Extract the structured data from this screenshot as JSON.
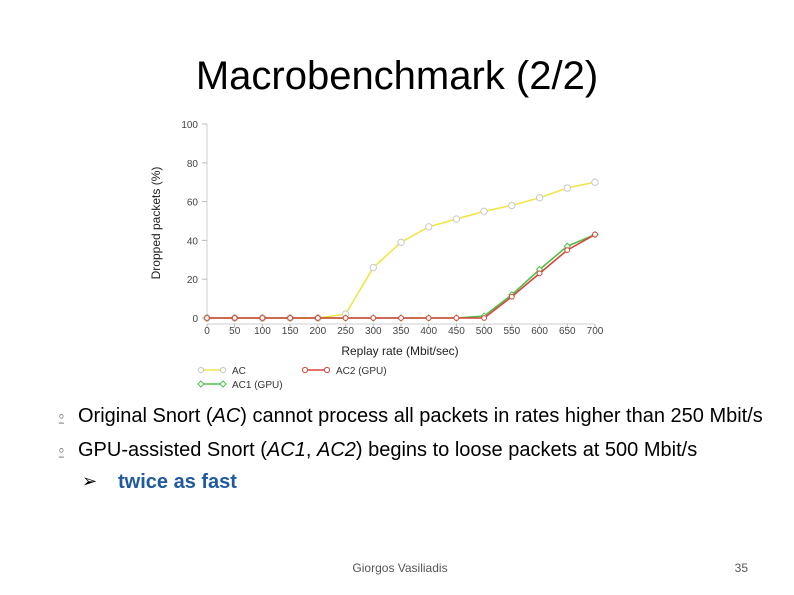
{
  "slide": {
    "title": "Macrobenchmark (2/2)",
    "bullets": [
      {
        "pre": "Original Snort (",
        "em1": "AC",
        "post": ") cannot process all packets in rates higher than 250 Mbit/s"
      },
      {
        "pre": "GPU-assisted Snort (",
        "em1": "AC1",
        "mid": ", ",
        "em2": "AC2",
        "post": ") begins to loose packets at 500 Mbit/s"
      }
    ],
    "sub_bullet": "twice as fast",
    "footer_author": "Giorgos Vasiliadis",
    "page_number": "35",
    "colors": {
      "accent": "#1f5aa0",
      "bullet_mark": "#7a7a7a"
    }
  },
  "chart_data": {
    "type": "line",
    "xlabel": "Replay rate (Mbit/sec)",
    "ylabel": "Dropped packets (%)",
    "x": [
      0,
      50,
      100,
      150,
      200,
      250,
      300,
      350,
      400,
      450,
      500,
      550,
      600,
      650,
      700
    ],
    "xticks": [
      "0",
      "50",
      "100",
      "150",
      "200",
      "250",
      "300",
      "350",
      "400",
      "450",
      "500",
      "550",
      "600",
      "650",
      "700"
    ],
    "yticks": [
      "0",
      "20",
      "40",
      "60",
      "80",
      "100"
    ],
    "ylim": [
      0,
      100
    ],
    "xlim": [
      0,
      700
    ],
    "grid": false,
    "legend_position": "bottom-left",
    "series": [
      {
        "name": "AC",
        "color": "#f0e64a",
        "values": [
          0,
          0,
          0,
          0,
          0,
          2,
          26,
          39,
          47,
          51,
          55,
          58,
          62,
          67,
          70
        ]
      },
      {
        "name": "AC1 (GPU)",
        "color": "#4ec24e",
        "values": [
          0,
          0,
          0,
          0,
          0,
          0,
          0,
          0,
          0,
          0,
          1,
          12,
          25,
          37,
          43
        ]
      },
      {
        "name": "AC2 (GPU)",
        "color": "#d9453a",
        "values": [
          0,
          0,
          0,
          0,
          0,
          0,
          0,
          0,
          0,
          0,
          0,
          11,
          23,
          35,
          43
        ]
      }
    ]
  }
}
